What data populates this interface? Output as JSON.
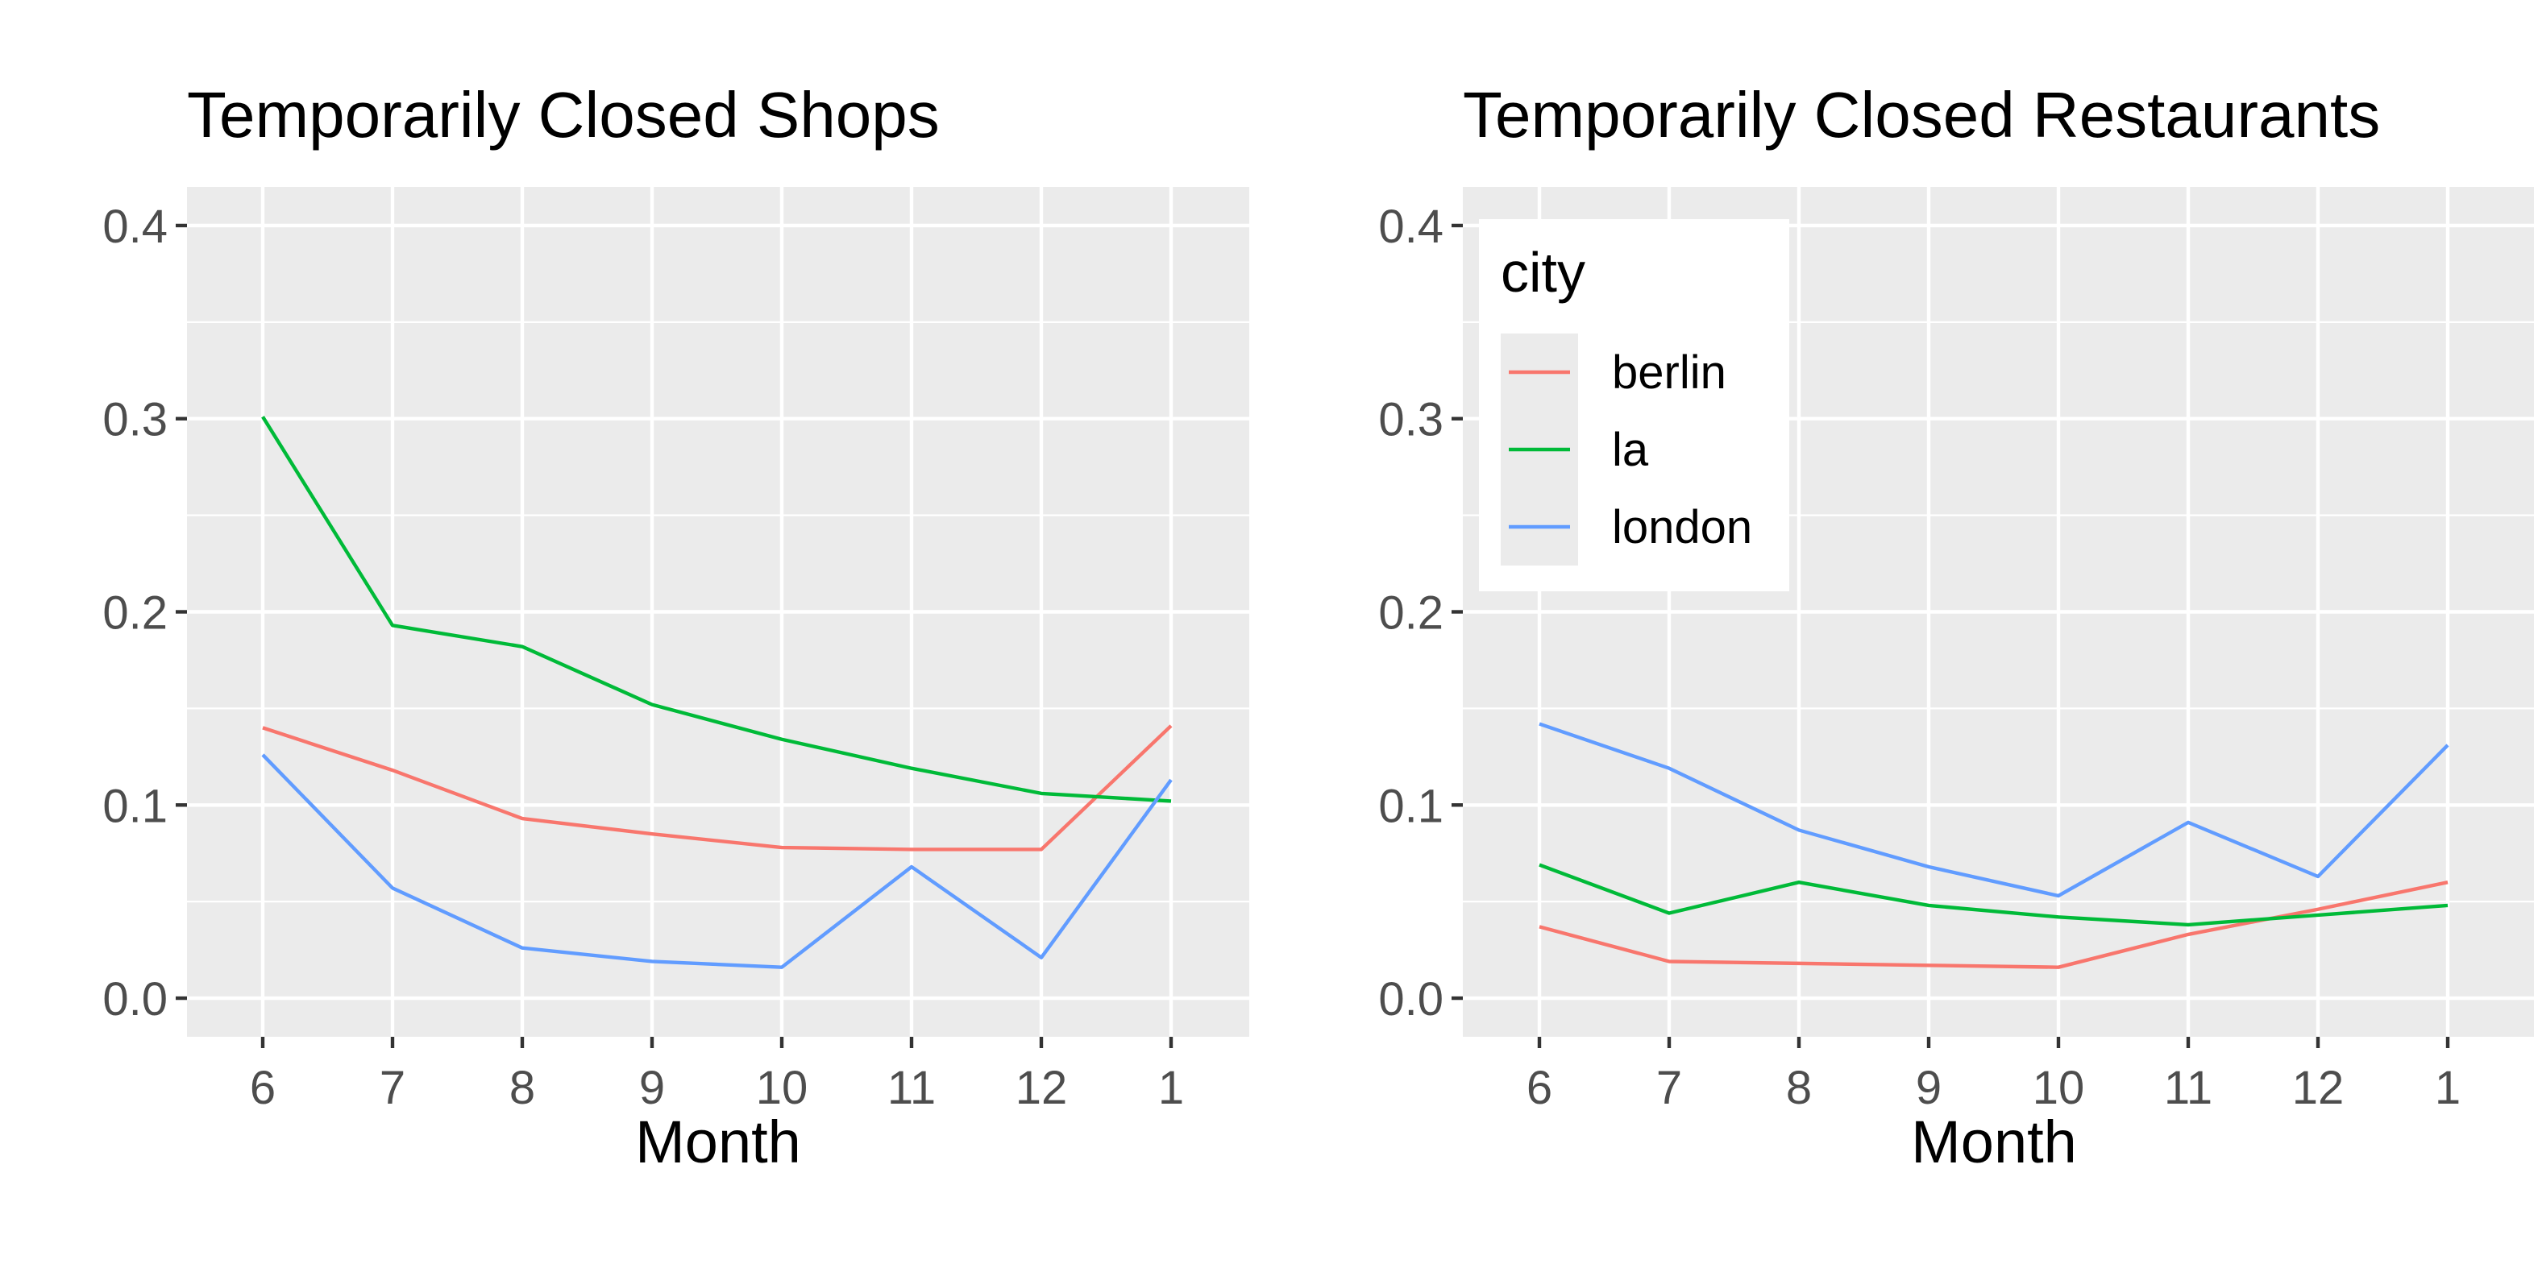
{
  "chart_data": [
    {
      "type": "line",
      "title": "Temporarily Closed Shops",
      "xlabel": "Month",
      "ylabel": "",
      "categories": [
        "6",
        "7",
        "8",
        "9",
        "10",
        "11",
        "12",
        "1"
      ],
      "ylim": [
        -0.02,
        0.42
      ],
      "yticks": [
        "0.0",
        "0.1",
        "0.2",
        "0.3",
        "0.4"
      ],
      "grid": true,
      "legend": "none",
      "series": [
        {
          "name": "berlin",
          "color": "#F8766D",
          "values": [
            0.14,
            0.118,
            0.093,
            0.085,
            0.078,
            0.077,
            0.077,
            0.141
          ]
        },
        {
          "name": "la",
          "color": "#00BA38",
          "values": [
            0.301,
            0.193,
            0.182,
            0.152,
            0.134,
            0.119,
            0.106,
            0.102
          ]
        },
        {
          "name": "london",
          "color": "#619CFF",
          "values": [
            0.126,
            0.057,
            0.026,
            0.019,
            0.016,
            0.068,
            0.021,
            0.113
          ]
        }
      ]
    },
    {
      "type": "line",
      "title": "Temporarily Closed Restaurants",
      "xlabel": "Month",
      "ylabel": "",
      "categories": [
        "6",
        "7",
        "8",
        "9",
        "10",
        "11",
        "12",
        "1"
      ],
      "ylim": [
        -0.02,
        0.42
      ],
      "yticks": [
        "0.0",
        "0.1",
        "0.2",
        "0.3",
        "0.4"
      ],
      "grid": true,
      "legend": "top-left",
      "series": [
        {
          "name": "berlin",
          "color": "#F8766D",
          "values": [
            0.037,
            0.019,
            0.018,
            0.017,
            0.016,
            0.033,
            0.046,
            0.06
          ]
        },
        {
          "name": "la",
          "color": "#00BA38",
          "values": [
            0.069,
            0.044,
            0.06,
            0.048,
            0.042,
            0.038,
            0.043,
            0.048
          ]
        },
        {
          "name": "london",
          "color": "#619CFF",
          "values": [
            0.142,
            0.119,
            0.087,
            0.068,
            0.053,
            0.091,
            0.063,
            0.131
          ]
        }
      ]
    }
  ],
  "legend": {
    "title": "city",
    "items": [
      {
        "label": "berlin",
        "color": "#F8766D"
      },
      {
        "label": "la",
        "color": "#00BA38"
      },
      {
        "label": "london",
        "color": "#619CFF"
      }
    ]
  }
}
